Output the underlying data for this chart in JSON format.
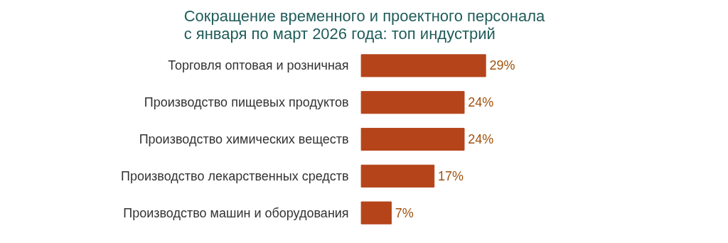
{
  "chart_data": {
    "type": "bar",
    "orientation": "horizontal",
    "title": "Сокращение временного и проектного персонала\nс января по март 2026 года: топ индустрий",
    "categories": [
      "Торговля оптовая и розничная",
      "Производство пищевых продуктов",
      "Производство химических веществ",
      "Производство лекарственных средств",
      "Производство машин и оборудования"
    ],
    "values": [
      29,
      24,
      24,
      17,
      7
    ],
    "color": "#b5441a",
    "value_labels": [
      "29%",
      "24%",
      "24%",
      "17%",
      "7%"
    ],
    "grid": false
  }
}
